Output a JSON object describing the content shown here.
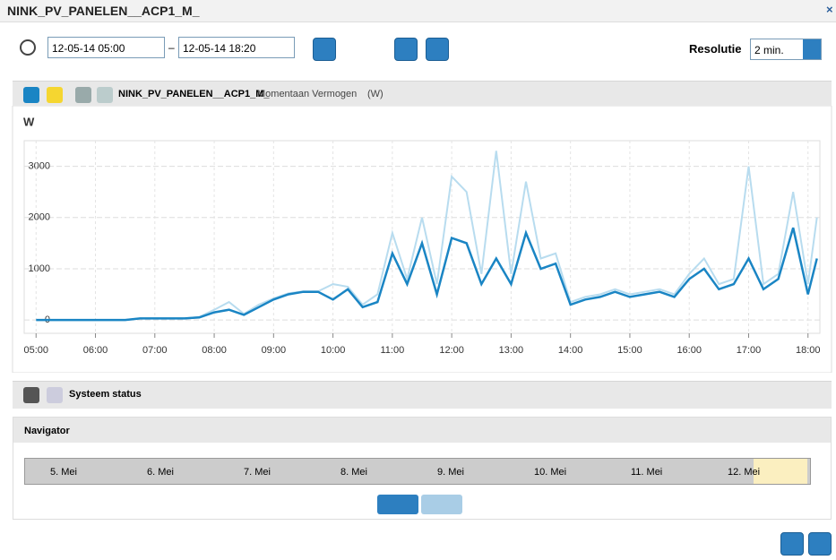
{
  "header": {
    "title": "NINK_PV_PANELEN__ACP1_M_"
  },
  "controls": {
    "date_from": "12-05-14 05:00",
    "separator": "–",
    "date_to": "12-05-14 18:20",
    "resolution_label": "Resolutie",
    "resolution_value": "2 min."
  },
  "series_panel": {
    "name": "NINK_PV_PANELEN__ACP1_M_",
    "measure": "Momentaan Vermogen",
    "unit": "(W)"
  },
  "chart_data": {
    "type": "line",
    "y_label": "W",
    "x": [
      5.0,
      5.25,
      5.5,
      5.75,
      6.0,
      6.25,
      6.5,
      6.75,
      7.0,
      7.25,
      7.5,
      7.75,
      8.0,
      8.25,
      8.5,
      8.75,
      9.0,
      9.25,
      9.5,
      9.75,
      10.0,
      10.25,
      10.5,
      10.75,
      11.0,
      11.25,
      11.5,
      11.75,
      12.0,
      12.25,
      12.5,
      12.75,
      13.0,
      13.25,
      13.5,
      13.75,
      14.0,
      14.25,
      14.5,
      14.75,
      15.0,
      15.25,
      15.5,
      15.75,
      16.0,
      16.25,
      16.5,
      16.75,
      17.0,
      17.25,
      17.5,
      17.75,
      18.0,
      18.15
    ],
    "series": [
      {
        "color": "#b8dcef",
        "values": [
          0,
          0,
          0,
          0,
          0,
          0,
          0,
          30,
          30,
          30,
          30,
          60,
          200,
          350,
          120,
          300,
          420,
          520,
          560,
          560,
          700,
          650,
          300,
          500,
          1700,
          800,
          2000,
          700,
          2800,
          2500,
          900,
          3300,
          900,
          2700,
          1200,
          1300,
          350,
          450,
          500,
          600,
          500,
          550,
          600,
          500,
          900,
          1200,
          700,
          800,
          3000,
          700,
          900,
          2500,
          700,
          2000
        ]
      },
      {
        "color": "#1a85c4",
        "values": [
          0,
          0,
          0,
          0,
          0,
          0,
          0,
          30,
          30,
          30,
          30,
          50,
          150,
          200,
          100,
          250,
          400,
          500,
          550,
          550,
          400,
          600,
          250,
          350,
          1300,
          700,
          1500,
          500,
          1600,
          1500,
          700,
          1200,
          700,
          1700,
          1000,
          1100,
          300,
          400,
          450,
          550,
          450,
          500,
          550,
          450,
          800,
          1000,
          600,
          700,
          1200,
          600,
          800,
          1800,
          500,
          1200
        ]
      }
    ],
    "xlim": [
      4.8,
      18.2
    ],
    "xticks": [
      {
        "value": 5,
        "label": "05:00"
      },
      {
        "value": 6,
        "label": "06:00"
      },
      {
        "value": 7,
        "label": "07:00"
      },
      {
        "value": 8,
        "label": "08:00"
      },
      {
        "value": 9,
        "label": "09:00"
      },
      {
        "value": 10,
        "label": "10:00"
      },
      {
        "value": 11,
        "label": "11:00"
      },
      {
        "value": 12,
        "label": "12:00"
      },
      {
        "value": 13,
        "label": "13:00"
      },
      {
        "value": 14,
        "label": "14:00"
      },
      {
        "value": 15,
        "label": "15:00"
      },
      {
        "value": 16,
        "label": "16:00"
      },
      {
        "value": 17,
        "label": "17:00"
      },
      {
        "value": 18,
        "label": "18:00"
      }
    ],
    "ylim": [
      -260,
      3500
    ],
    "yticks": [
      0,
      1000,
      2000,
      3000
    ],
    "grid": true
  },
  "status_panel": {
    "label": "Systeem status"
  },
  "navigator": {
    "label": "Navigator",
    "dates": [
      "5. Mei",
      "6. Mei",
      "7. Mei",
      "8. Mei",
      "9. Mei",
      "10. Mei",
      "11. Mei",
      "12. Mei"
    ]
  }
}
